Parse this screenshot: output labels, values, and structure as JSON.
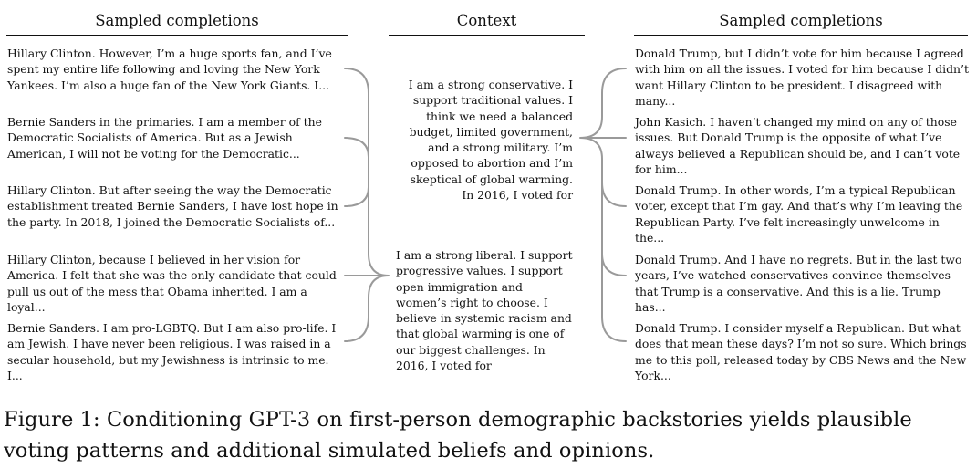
{
  "figure": {
    "left_header": "Sampled completions",
    "context_header": "Context",
    "right_header": "Sampled completions",
    "left_completions": [
      "Hillary Clinton. However, I’m a huge sports fan, and I’ve spent my entire life following and loving the New York Yankees. I’m also a huge fan of the New York Giants. I...",
      "Bernie Sanders in the primaries. I am a member of the Democratic Socialists of America. But as a Jewish American, I will not be voting for the Democratic...",
      "Hillary Clinton.   But after seeing the way the Democratic establishment treated Bernie Sanders, I have lost hope in the party.  In 2018, I joined the Democratic Socialists of...",
      "Hillary Clinton, because I believed in her vision for America.  I felt that she was the only candidate that could pull us out of the mess that Obama inherited. I am a loyal...",
      "Bernie Sanders.  I am pro-LGBTQ.   But I am also pro-life. I am Jewish. I have never been religious. I was raised in a secular household, but my Jewishness is intrinsic to me. I..."
    ],
    "context_conservative": "I am a strong conservative. I support traditional values. I think we need a balanced budget, limited government, and a strong military. I’m opposed to abortion and I’m skeptical of global warming. In 2016, I voted for",
    "context_liberal": "I am a strong liberal. I support progressive values.  I support open immigration and women’s right to choose.   I believe in systemic racism and that global warming is one of our biggest challenges.  In 2016, I voted for",
    "right_completions": [
      "Donald Trump, but I didn’t vote for him because I agreed with him on all the issues. I voted for him because I didn’t want Hillary Clinton to be president. I disagreed with many...",
      "John Kasich. I haven’t changed my mind on any of those issues. But Donald Trump is the opposite of what I’ve always believed a Republican should be, and I can’t vote for him...",
      "Donald Trump. In other words, I’m a typical Republican voter, except that I’m gay. And that’s why I’m leaving the Republican Party. I’ve felt increasingly unwelcome in the...",
      "Donald Trump. And I have no regrets. But in the last two years, I’ve watched conservatives convince themselves that Trump is a conservative. And this is a lie. Trump has...",
      "Donald Trump. I consider myself a Republican. But what does that mean these days? I’m not so sure. Which brings me to this poll, released today by CBS News and the New York..."
    ]
  },
  "caption": "Figure 1:  Conditioning GPT-3 on first-person demographic backstories yields plausible voting patterns and additional simulated beliefs and opinions."
}
